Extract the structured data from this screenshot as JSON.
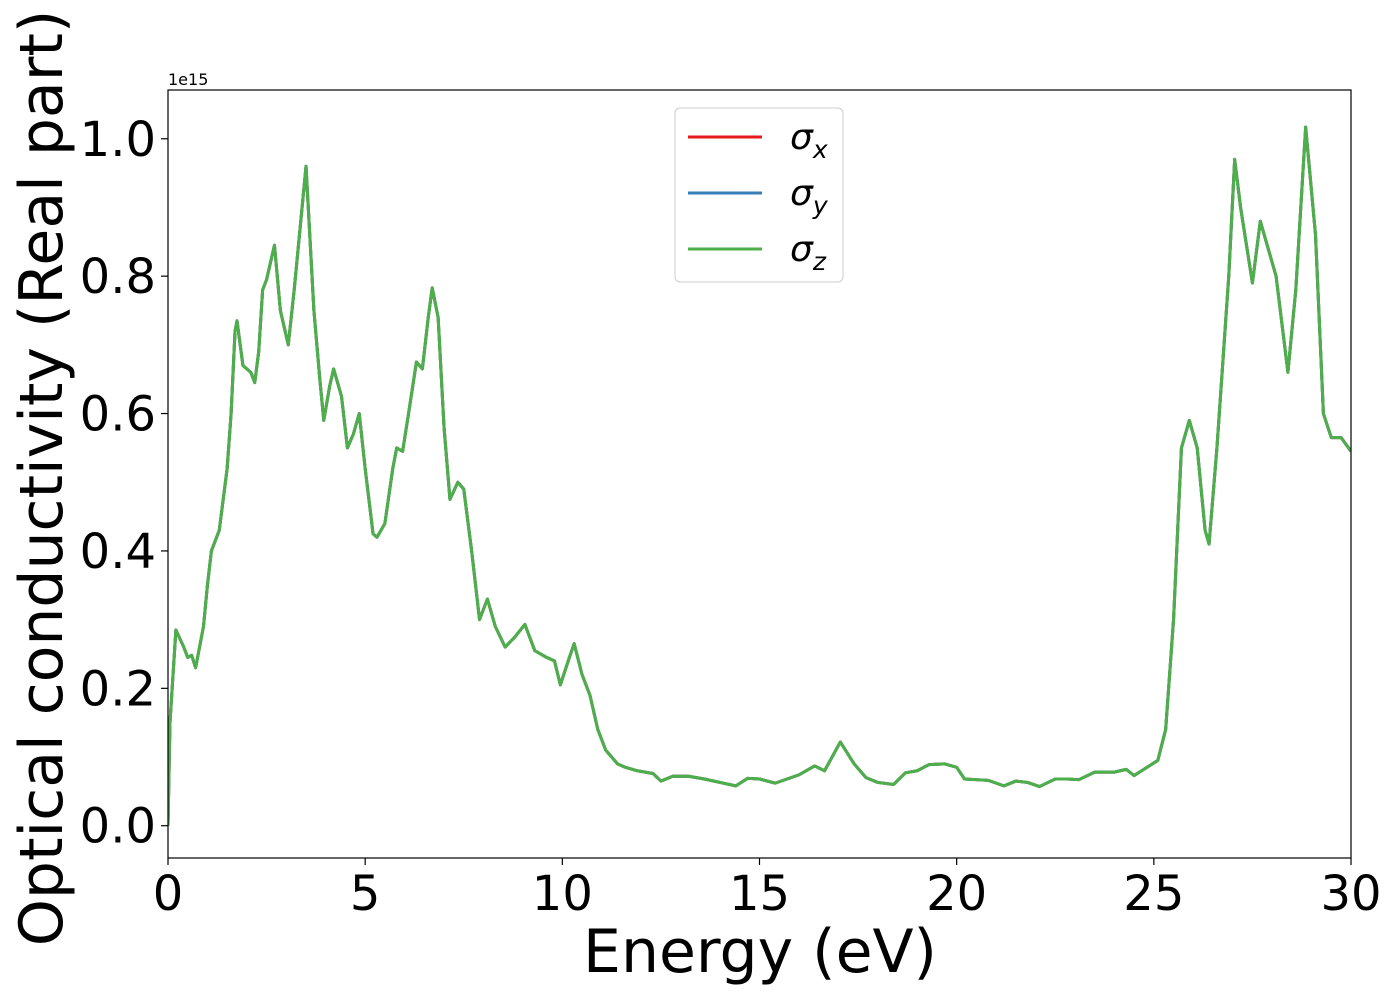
{
  "chart_data": {
    "type": "line",
    "x_label": "Energy (eV)",
    "y_label": "Optical conductivity (Real part)",
    "offset_text": "1e15",
    "x": [
      0,
      0.05,
      0.2,
      0.4,
      0.5,
      0.6,
      0.7,
      0.9,
      1.0,
      1.1,
      1.3,
      1.5,
      1.6,
      1.7,
      1.75,
      1.9,
      2.1,
      2.2,
      2.3,
      2.4,
      2.5,
      2.7,
      2.85,
      3.05,
      3.2,
      3.5,
      3.7,
      3.85,
      3.95,
      4.1,
      4.2,
      4.4,
      4.55,
      4.7,
      4.85,
      5.0,
      5.2,
      5.3,
      5.5,
      5.7,
      5.8,
      5.95,
      6.1,
      6.3,
      6.45,
      6.6,
      6.7,
      6.85,
      7.0,
      7.15,
      7.35,
      7.5,
      7.7,
      7.9,
      8.1,
      8.3,
      8.55,
      8.8,
      9.05,
      9.3,
      9.6,
      9.8,
      9.95,
      10.15,
      10.3,
      10.5,
      10.7,
      10.9,
      11.1,
      11.4,
      11.6,
      11.9,
      12.3,
      12.5,
      12.8,
      13.2,
      13.6,
      14.0,
      14.4,
      14.7,
      15.0,
      15.4,
      15.7,
      16.0,
      16.4,
      16.65,
      17.05,
      17.4,
      17.7,
      18.0,
      18.4,
      18.7,
      19.0,
      19.3,
      19.7,
      20.0,
      20.2,
      20.5,
      20.8,
      21.2,
      21.5,
      21.8,
      22.1,
      22.5,
      22.8,
      23.1,
      23.5,
      24.0,
      24.3,
      24.5,
      24.8,
      25.1,
      25.3,
      25.5,
      25.7,
      25.9,
      26.1,
      26.3,
      26.4,
      26.6,
      26.9,
      27.05,
      27.2,
      27.5,
      27.7,
      28.1,
      28.4,
      28.6,
      28.85,
      29.1,
      29.3,
      29.5,
      29.75,
      30.0
    ],
    "series": [
      {
        "name": "σx",
        "color": "#e41a1c",
        "values": [
          0.0,
          0.15,
          0.285,
          0.26,
          0.245,
          0.248,
          0.23,
          0.29,
          0.35,
          0.4,
          0.43,
          0.52,
          0.6,
          0.72,
          0.735,
          0.67,
          0.66,
          0.645,
          0.69,
          0.78,
          0.795,
          0.845,
          0.75,
          0.7,
          0.78,
          0.96,
          0.75,
          0.65,
          0.59,
          0.64,
          0.665,
          0.625,
          0.55,
          0.57,
          0.6,
          0.52,
          0.425,
          0.42,
          0.44,
          0.52,
          0.55,
          0.545,
          0.6,
          0.675,
          0.665,
          0.74,
          0.783,
          0.74,
          0.58,
          0.475,
          0.5,
          0.49,
          0.4,
          0.3,
          0.33,
          0.29,
          0.26,
          0.275,
          0.293,
          0.255,
          0.245,
          0.24,
          0.205,
          0.24,
          0.265,
          0.22,
          0.19,
          0.14,
          0.11,
          0.09,
          0.085,
          0.08,
          0.076,
          0.065,
          0.072,
          0.072,
          0.068,
          0.063,
          0.058,
          0.069,
          0.068,
          0.062,
          0.068,
          0.074,
          0.087,
          0.08,
          0.122,
          0.09,
          0.07,
          0.063,
          0.06,
          0.077,
          0.08,
          0.089,
          0.09,
          0.085,
          0.068,
          0.067,
          0.066,
          0.058,
          0.065,
          0.063,
          0.057,
          0.068,
          0.068,
          0.067,
          0.078,
          0.078,
          0.082,
          0.073,
          0.084,
          0.095,
          0.14,
          0.3,
          0.55,
          0.59,
          0.55,
          0.43,
          0.41,
          0.55,
          0.8,
          0.97,
          0.9,
          0.79,
          0.88,
          0.8,
          0.66,
          0.78,
          1.017,
          0.86,
          0.6,
          0.565,
          0.565,
          0.545
        ]
      },
      {
        "name": "σy",
        "color": "#377eb8",
        "values": [
          0.0,
          0.15,
          0.285,
          0.26,
          0.245,
          0.248,
          0.23,
          0.29,
          0.35,
          0.4,
          0.43,
          0.52,
          0.6,
          0.72,
          0.735,
          0.67,
          0.66,
          0.645,
          0.69,
          0.78,
          0.795,
          0.845,
          0.75,
          0.7,
          0.78,
          0.96,
          0.75,
          0.65,
          0.59,
          0.64,
          0.665,
          0.625,
          0.55,
          0.57,
          0.6,
          0.52,
          0.425,
          0.42,
          0.44,
          0.52,
          0.55,
          0.545,
          0.6,
          0.675,
          0.665,
          0.74,
          0.783,
          0.74,
          0.58,
          0.475,
          0.5,
          0.49,
          0.4,
          0.3,
          0.33,
          0.29,
          0.26,
          0.275,
          0.293,
          0.255,
          0.245,
          0.24,
          0.205,
          0.24,
          0.265,
          0.22,
          0.19,
          0.14,
          0.11,
          0.09,
          0.085,
          0.08,
          0.076,
          0.065,
          0.072,
          0.072,
          0.068,
          0.063,
          0.058,
          0.069,
          0.068,
          0.062,
          0.068,
          0.074,
          0.087,
          0.08,
          0.122,
          0.09,
          0.07,
          0.063,
          0.06,
          0.077,
          0.08,
          0.089,
          0.09,
          0.085,
          0.068,
          0.067,
          0.066,
          0.058,
          0.065,
          0.063,
          0.057,
          0.068,
          0.068,
          0.067,
          0.078,
          0.078,
          0.082,
          0.073,
          0.084,
          0.095,
          0.14,
          0.3,
          0.55,
          0.59,
          0.55,
          0.43,
          0.41,
          0.55,
          0.8,
          0.97,
          0.9,
          0.79,
          0.88,
          0.8,
          0.66,
          0.78,
          1.017,
          0.86,
          0.6,
          0.565,
          0.565,
          0.545
        ]
      },
      {
        "name": "σz",
        "color": "#4daf4a",
        "values": [
          0.0,
          0.15,
          0.285,
          0.26,
          0.245,
          0.248,
          0.23,
          0.29,
          0.35,
          0.4,
          0.43,
          0.52,
          0.6,
          0.72,
          0.735,
          0.67,
          0.66,
          0.645,
          0.69,
          0.78,
          0.795,
          0.845,
          0.75,
          0.7,
          0.78,
          0.96,
          0.75,
          0.65,
          0.59,
          0.64,
          0.665,
          0.625,
          0.55,
          0.57,
          0.6,
          0.52,
          0.425,
          0.42,
          0.44,
          0.52,
          0.55,
          0.545,
          0.6,
          0.675,
          0.665,
          0.74,
          0.783,
          0.74,
          0.58,
          0.475,
          0.5,
          0.49,
          0.4,
          0.3,
          0.33,
          0.29,
          0.26,
          0.275,
          0.293,
          0.255,
          0.245,
          0.24,
          0.205,
          0.24,
          0.265,
          0.22,
          0.19,
          0.14,
          0.11,
          0.09,
          0.085,
          0.08,
          0.076,
          0.065,
          0.072,
          0.072,
          0.068,
          0.063,
          0.058,
          0.069,
          0.068,
          0.062,
          0.068,
          0.074,
          0.087,
          0.08,
          0.122,
          0.09,
          0.07,
          0.063,
          0.06,
          0.077,
          0.08,
          0.089,
          0.09,
          0.085,
          0.068,
          0.067,
          0.066,
          0.058,
          0.065,
          0.063,
          0.057,
          0.068,
          0.068,
          0.067,
          0.078,
          0.078,
          0.082,
          0.073,
          0.084,
          0.095,
          0.14,
          0.3,
          0.55,
          0.59,
          0.55,
          0.43,
          0.41,
          0.55,
          0.8,
          0.97,
          0.9,
          0.79,
          0.88,
          0.8,
          0.66,
          0.78,
          1.017,
          0.86,
          0.6,
          0.565,
          0.565,
          0.545
        ]
      }
    ],
    "xlim": [
      0,
      30
    ],
    "xticks": [
      0,
      5,
      10,
      15,
      20,
      25,
      30
    ],
    "ylim": [
      -0.047,
      1.071
    ],
    "yticks": [
      {
        "value": 0,
        "label": "0.0"
      },
      {
        "value": 0.2,
        "label": "0.2"
      },
      {
        "value": 0.4,
        "label": "0.4"
      },
      {
        "value": 0.6,
        "label": "0.6"
      },
      {
        "value": 0.8,
        "label": "0.8"
      },
      {
        "value": 1.0,
        "label": "1.0"
      }
    ],
    "grid": false,
    "legend": "upper center"
  }
}
